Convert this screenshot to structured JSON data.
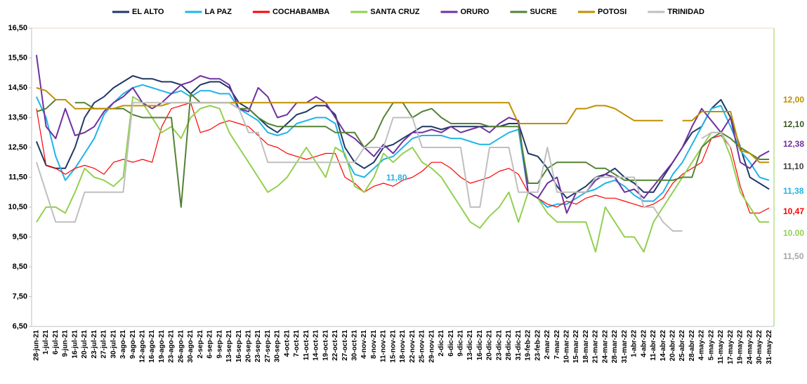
{
  "chart_data": {
    "type": "line",
    "categories": [
      "28-jun-21",
      "1-jul-21",
      "6-jul-21",
      "9-jun-21",
      "16-jul-21",
      "20-jul-21",
      "23-jul-21",
      "27-jul-21",
      "30-jul-21",
      "3-ago-21",
      "9-ago-21",
      "12-ago-21",
      "16-ago-21",
      "19-ago-21",
      "23-ago-21",
      "26-ago-21",
      "30-ago-21",
      "2-sep-21",
      "6-sep-21",
      "9-sep-21",
      "13-sep-21",
      "16-sep-21",
      "20-sep-21",
      "23-sep-21",
      "27-sep-21",
      "30-sep-21",
      "4-oct-21",
      "7-oct-21",
      "11-oct-21",
      "14-oct-21",
      "19-oct-21",
      "22-oct-21",
      "27-oct-21",
      "30-oct-21",
      "4-nov-21",
      "8-nov-21",
      "11-nov-21",
      "15-nov-21",
      "18-nov-21",
      "22-nov-21",
      "25-nov-21",
      "29-nov-21",
      "2-dic-21",
      "6-dic-21",
      "9-dic-21",
      "13-dic-21",
      "16-dic-21",
      "20-dic-21",
      "23-dic-21",
      "28-dic-21",
      "31-dic-21",
      "19-feb-22",
      "23-feb-22",
      "2-mar-22",
      "7-mar-22",
      "10-mar-22",
      "15-mar-22",
      "18-mar-22",
      "21-mar-22",
      "24-mar-22",
      "28-mar-22",
      "31-mar-22",
      "1-abr-22",
      "4-abr-22",
      "11-abr-22",
      "14-abr-22",
      "20-abr-22",
      "25-abr-22",
      "28-abr-22",
      "4-may-22",
      "5-may-22",
      "11-may-22",
      "17-may-22",
      "19-may-22",
      "24-may-22",
      "30-may-22",
      "31-may-22"
    ],
    "series": [
      {
        "name": "EL ALTO",
        "color": "#1f3864",
        "values": [
          12.7,
          11.9,
          11.8,
          11.8,
          12.5,
          13.5,
          14.0,
          14.2,
          14.5,
          14.7,
          14.9,
          14.8,
          14.8,
          14.7,
          14.7,
          14.6,
          14.3,
          14.6,
          14.7,
          14.7,
          14.5,
          14.0,
          13.8,
          13.5,
          13.2,
          13.0,
          13.3,
          13.6,
          13.7,
          13.9,
          13.9,
          13.6,
          12.5,
          12.0,
          11.8,
          12.0,
          12.5,
          12.6,
          12.8,
          13.0,
          13.2,
          13.2,
          13.1,
          13.2,
          13.2,
          13.2,
          13.2,
          13.2,
          13.2,
          13.3,
          13.3,
          12.3,
          12.2,
          11.8,
          11.2,
          10.8,
          11.0,
          11.2,
          11.5,
          11.6,
          11.8,
          11.5,
          11.3,
          11.0,
          11.0,
          11.5,
          12.0,
          12.5,
          13.0,
          13.2,
          13.8,
          14.1,
          13.5,
          12.5,
          11.5,
          11.3,
          11.1
        ]
      },
      {
        "name": "LA PAZ",
        "color": "#1fb4e8",
        "values": [
          14.2,
          13.5,
          12.2,
          11.4,
          11.8,
          12.3,
          12.8,
          13.6,
          14.0,
          14.3,
          14.5,
          14.6,
          14.5,
          14.4,
          14.3,
          14.4,
          14.2,
          14.4,
          14.4,
          14.3,
          14.3,
          13.8,
          13.6,
          13.4,
          13.0,
          12.9,
          13.0,
          13.3,
          13.4,
          13.5,
          13.5,
          13.3,
          12.2,
          11.6,
          11.5,
          11.8,
          12.1,
          12.2,
          12.5,
          12.8,
          12.9,
          12.9,
          12.9,
          12.8,
          12.8,
          12.7,
          12.6,
          12.6,
          12.8,
          13.0,
          13.1,
          11.0,
          10.8,
          10.5,
          10.6,
          10.6,
          10.8,
          11.0,
          11.1,
          11.3,
          11.4,
          11.2,
          10.9,
          10.7,
          10.7,
          11.0,
          11.6,
          12.0,
          12.6,
          13.2,
          13.8,
          13.9,
          13.2,
          12.4,
          12.0,
          11.5,
          11.4
        ]
      },
      {
        "name": "COCHABAMBA",
        "color": "#ff0000",
        "values": [
          13.8,
          11.9,
          11.8,
          11.6,
          11.8,
          11.9,
          11.8,
          11.6,
          12.0,
          12.1,
          12.0,
          12.1,
          12.0,
          13.2,
          13.8,
          13.9,
          14.0,
          13.0,
          13.1,
          13.3,
          13.4,
          13.3,
          13.2,
          12.9,
          12.6,
          12.5,
          12.3,
          12.2,
          12.1,
          12.2,
          12.3,
          12.3,
          11.5,
          11.3,
          11.0,
          11.2,
          11.3,
          11.2,
          11.4,
          11.5,
          11.7,
          12.0,
          12.0,
          11.8,
          11.5,
          11.3,
          11.4,
          11.5,
          11.7,
          11.8,
          11.6,
          11.0,
          10.8,
          10.6,
          10.5,
          10.7,
          10.6,
          10.8,
          10.9,
          10.8,
          10.8,
          10.7,
          10.6,
          10.5,
          10.6,
          10.8,
          11.3,
          11.6,
          11.8,
          12.0,
          12.8,
          12.9,
          12.5,
          11.2,
          10.3,
          10.3,
          10.47
        ]
      },
      {
        "name": "SANTA CRUZ",
        "color": "#92d050",
        "values": [
          10.0,
          10.5,
          10.5,
          10.3,
          11.0,
          11.8,
          11.5,
          11.4,
          11.2,
          11.5,
          14.2,
          14.0,
          13.5,
          13.0,
          13.2,
          12.8,
          13.5,
          13.8,
          13.9,
          13.8,
          13.0,
          12.5,
          12.0,
          11.5,
          11.0,
          11.2,
          11.5,
          12.0,
          12.5,
          12.0,
          11.5,
          12.5,
          12.3,
          11.2,
          11.0,
          11.5,
          12.3,
          12.0,
          12.3,
          12.5,
          12.0,
          11.8,
          11.5,
          11.0,
          10.5,
          10.0,
          9.8,
          10.2,
          10.5,
          11.0,
          10.0,
          11.0,
          10.8,
          10.3,
          10.0,
          10.0,
          10.0,
          10.0,
          9.0,
          10.5,
          10.0,
          9.5,
          9.5,
          9.0,
          10.0,
          10.5,
          11.0,
          11.5,
          12.0,
          12.5,
          13.0,
          13.0,
          12.2,
          11.0,
          10.5,
          10.0,
          10.0
        ]
      },
      {
        "name": "ORURO",
        "color": "#7030a0",
        "values": [
          15.6,
          13.2,
          12.8,
          13.8,
          12.9,
          13.0,
          13.2,
          13.7,
          14.0,
          14.2,
          14.5,
          14.0,
          13.8,
          14.0,
          14.3,
          14.6,
          14.7,
          14.9,
          14.8,
          14.8,
          14.6,
          13.8,
          13.7,
          14.5,
          14.2,
          13.5,
          13.6,
          14.0,
          14.0,
          14.2,
          14.0,
          13.5,
          13.0,
          12.8,
          12.5,
          12.2,
          12.6,
          12.3,
          12.7,
          13.0,
          13.0,
          13.1,
          13.0,
          13.2,
          13.0,
          13.1,
          13.2,
          13.0,
          13.3,
          13.5,
          13.4,
          11.0,
          10.8,
          11.3,
          11.5,
          10.3,
          11.0,
          11.0,
          11.4,
          11.6,
          11.5,
          11.0,
          11.1,
          10.8,
          11.2,
          11.6,
          12.0,
          12.5,
          13.2,
          13.8,
          13.4,
          13.0,
          13.5,
          12.0,
          11.8,
          12.2,
          12.38
        ]
      },
      {
        "name": "SUCRE",
        "color": "#548235",
        "values": [
          13.7,
          13.8,
          14.1,
          null,
          14.0,
          14.0,
          13.8,
          13.8,
          13.8,
          13.8,
          13.6,
          13.5,
          13.5,
          13.5,
          13.5,
          10.5,
          14.3,
          14.0,
          14.0,
          14.0,
          14.0,
          13.8,
          13.8,
          13.5,
          13.3,
          13.2,
          13.2,
          13.2,
          13.2,
          13.2,
          13.2,
          13.0,
          13.0,
          13.0,
          12.5,
          12.8,
          13.5,
          14.0,
          14.0,
          13.5,
          13.7,
          13.8,
          13.5,
          13.3,
          13.3,
          13.3,
          13.3,
          13.2,
          13.2,
          13.2,
          13.2,
          11.3,
          11.3,
          11.8,
          12.0,
          12.0,
          12.0,
          12.0,
          11.8,
          11.8,
          11.6,
          11.4,
          11.4,
          11.4,
          11.4,
          11.4,
          11.4,
          11.5,
          11.5,
          12.5,
          12.8,
          13.0,
          12.8,
          12.5,
          12.3,
          12.1,
          12.1
        ]
      },
      {
        "name": "POTOSI",
        "color": "#bf9000",
        "values": [
          14.5,
          14.4,
          14.1,
          14.1,
          13.8,
          13.8,
          13.8,
          13.8,
          13.8,
          13.9,
          13.9,
          13.9,
          13.9,
          13.9,
          14.0,
          14.0,
          14.0,
          14.0,
          14.0,
          14.0,
          14.0,
          14.0,
          14.0,
          14.0,
          14.0,
          14.0,
          14.0,
          14.0,
          14.0,
          14.0,
          14.0,
          14.0,
          14.0,
          14.0,
          14.0,
          14.0,
          14.0,
          14.0,
          14.0,
          14.0,
          14.0,
          14.0,
          14.0,
          14.0,
          14.0,
          14.0,
          14.0,
          14.0,
          14.0,
          14.0,
          13.3,
          13.3,
          13.3,
          13.3,
          13.3,
          13.3,
          13.8,
          13.8,
          13.9,
          13.9,
          13.8,
          13.6,
          13.4,
          13.4,
          13.4,
          13.4,
          null,
          13.4,
          13.4,
          13.7,
          13.7,
          13.7,
          13.7,
          12.4,
          12.3,
          12.0,
          12.0
        ]
      },
      {
        "name": "TRINIDAD",
        "color": "#bfbfbf",
        "values": [
          12.0,
          11.0,
          10.0,
          10.0,
          10.0,
          11.0,
          11.0,
          11.0,
          11.0,
          11.0,
          14.0,
          14.0,
          14.0,
          14.0,
          14.0,
          14.0,
          14.0,
          14.0,
          14.0,
          14.0,
          14.0,
          13.8,
          13.0,
          13.0,
          12.0,
          12.0,
          12.0,
          12.0,
          12.0,
          12.0,
          12.0,
          12.0,
          12.0,
          12.0,
          12.5,
          12.5,
          12.5,
          13.5,
          13.5,
          13.5,
          12.5,
          12.5,
          12.5,
          12.5,
          12.5,
          10.5,
          10.5,
          12.5,
          12.5,
          12.5,
          11.0,
          11.0,
          11.0,
          12.5,
          11.0,
          11.0,
          11.0,
          11.0,
          11.5,
          11.5,
          11.5,
          11.5,
          11.5,
          10.5,
          10.5,
          10.0,
          9.7,
          9.7,
          null,
          12.8,
          13.0,
          13.0,
          12.5,
          null,
          null,
          null,
          null
        ]
      }
    ],
    "ylim": [
      6.5,
      16.5
    ],
    "yticks": [
      {
        "value": 6.5,
        "label": "6,50"
      },
      {
        "value": 7.5,
        "label": "7,50"
      },
      {
        "value": 8.5,
        "label": "8,50"
      },
      {
        "value": 9.5,
        "label": "9,50"
      },
      {
        "value": 10.5,
        "label": "10,50"
      },
      {
        "value": 11.5,
        "label": "11,50"
      },
      {
        "value": 12.5,
        "label": "12,50"
      },
      {
        "value": 13.5,
        "label": "13,50"
      },
      {
        "value": 14.5,
        "label": "14,50"
      },
      {
        "value": 15.5,
        "label": "15,50"
      },
      {
        "value": 16.5,
        "label": "16,50"
      }
    ],
    "legend": "top",
    "annotations": [
      {
        "text": "11,80",
        "color": "#1fb4e8"
      }
    ],
    "end_labels": [
      {
        "text": "12,00",
        "color": "#bf9000"
      },
      {
        "text": "12,10",
        "color": "#375623"
      },
      {
        "text": "12,38",
        "color": "#7030a0"
      },
      {
        "text": "11,10",
        "color": "#404040"
      },
      {
        "text": "11,38",
        "color": "#1fb4e8"
      },
      {
        "text": "10,47",
        "color": "#ff0000"
      },
      {
        "text": "10.00",
        "color": "#92d050"
      },
      {
        "text": "11,50",
        "color": "#a6a6a6"
      }
    ]
  }
}
